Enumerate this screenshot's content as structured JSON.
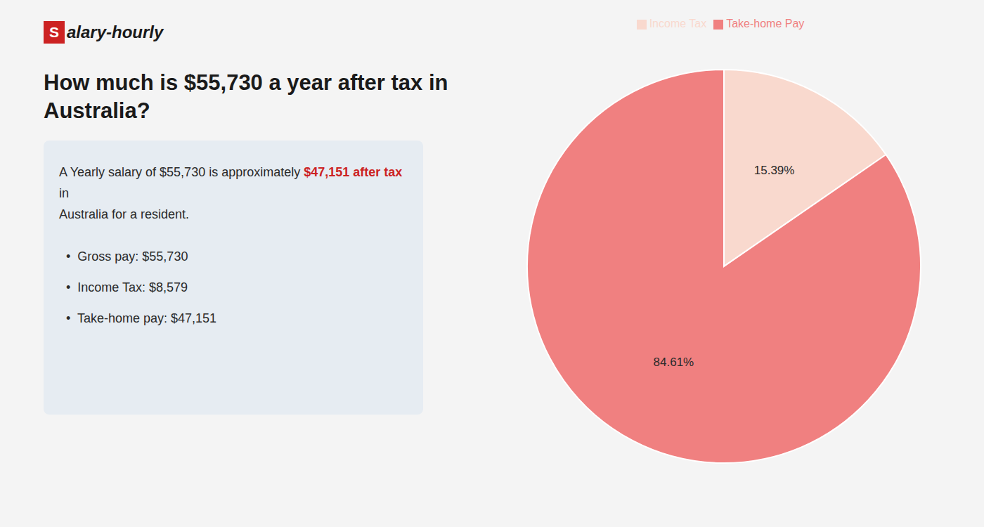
{
  "chart_data": {
    "type": "pie",
    "title": [
      "How much is $55,730 a year after tax in",
      "Australia?"
    ],
    "categories": [
      "Income Tax",
      "Take-home Pay"
    ],
    "values": [
      15.39,
      84.61
    ],
    "value_labels": [
      "15.39%",
      "84.61%"
    ],
    "colors": [
      "#f9d9ce",
      "#f08080"
    ],
    "data_labels": true,
    "legend": "top",
    "annotations": [
      {
        "text": "S",
        "color": "#cc2222"
      },
      {
        "text": "alary-hourly"
      },
      {
        "text": "A Yearly salary of $55,730 is approximately "
      },
      {
        "text": "$47,151 after tax",
        "color": "#cc2222"
      },
      {
        "text": " in"
      },
      {
        "text": "Australia for a resident."
      },
      {
        "text": "•  Gross pay: $55,730"
      },
      {
        "text": "•  Income Tax: $8,579"
      },
      {
        "text": "•  Take-home pay: $47,151"
      }
    ]
  }
}
